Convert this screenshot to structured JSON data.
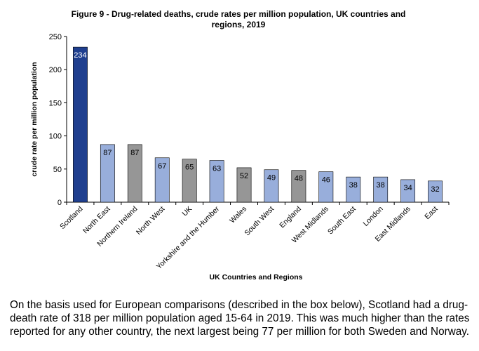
{
  "chart_data": {
    "type": "bar",
    "title_line1": "Figure 9 - Drug-related deaths, crude rates per million population, UK countries and",
    "title_line2": "regions, 2019",
    "xlabel": "UK Countries and Regions",
    "ylabel": "crude rate per million population",
    "ylim": [
      0,
      250
    ],
    "yticks": [
      0,
      50,
      100,
      150,
      200,
      250
    ],
    "grid": false,
    "categories": [
      "Scotland",
      "North East",
      "Northern Ireland",
      "North West",
      "UK",
      "Yorkshire and the Humber",
      "Wales",
      "South West",
      "England",
      "West Midlands",
      "South East",
      "London",
      "East Midlands",
      "East"
    ],
    "values": [
      234,
      87,
      87,
      67,
      65,
      63,
      52,
      49,
      48,
      46,
      38,
      38,
      34,
      32
    ],
    "bar_groups": [
      "scotland",
      "region",
      "country",
      "region",
      "country",
      "region",
      "country",
      "region",
      "country",
      "region",
      "region",
      "region",
      "region",
      "region"
    ],
    "colors": {
      "scotland": "#1F3F8F",
      "country": "#969696",
      "region": "#98AEDB",
      "outline": "#000000",
      "label_on_dark": "#ffffff",
      "label_on_light": "#000000"
    }
  },
  "caption": "On the basis used for European comparisons (described in the box below), Scotland had a drug-death rate of 318 per million population aged 15-64 in 2019.  This was much higher than the rates reported for any other country, the next largest being 77 per million for both Sweden and Norway."
}
